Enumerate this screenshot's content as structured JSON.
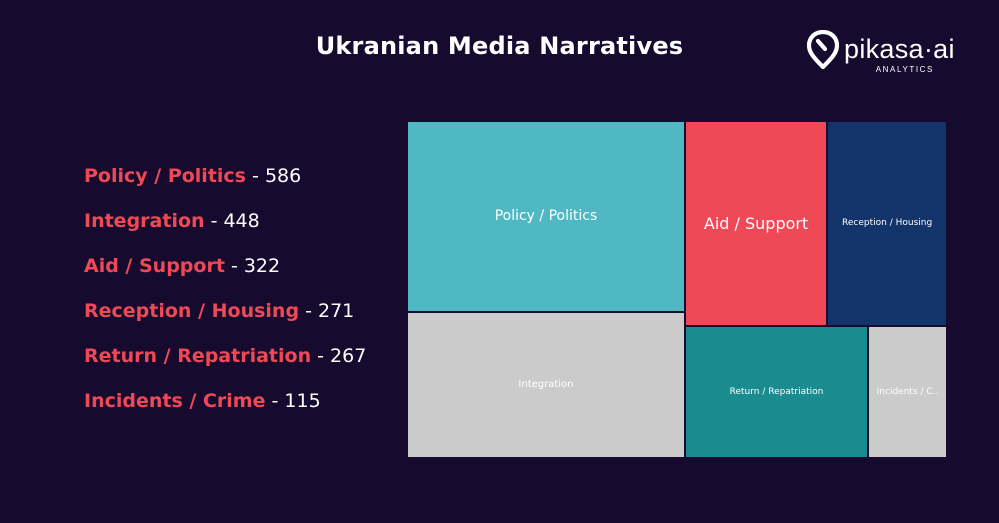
{
  "chart_data": {
    "type": "treemap",
    "title": "Ukranian Media Narratives",
    "categories": [
      "Policy / Politics",
      "Integration",
      "Aid / Support",
      "Reception / Housing",
      "Return / Repatriation",
      "Incidents / Crime"
    ],
    "values": [
      586,
      448,
      322,
      271,
      267,
      115
    ],
    "tile_labels": [
      "Policy / Politics",
      "Integration",
      "Aid / Support",
      "Reception / Housing",
      "Return / Repatriation",
      "Incidents / C.."
    ],
    "colors": [
      "#4fb8c2",
      "#cbcbcb",
      "#ef4856",
      "#12346b",
      "#1a8c90",
      "#cbcbcb"
    ],
    "legend_separator": "-",
    "legend_placement": "left"
  },
  "brand": {
    "name": "pikasa·ai",
    "tagline": "ANALYTICS"
  },
  "colors": {
    "background": "#160b2e",
    "legend_label": "#ef4856",
    "text": "#ffffff"
  }
}
